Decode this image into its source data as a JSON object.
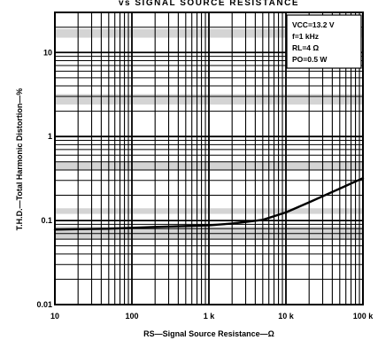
{
  "chart_data": {
    "type": "line",
    "title": "vs SIGNAL SOURCE RESISTANCE",
    "xlabel": "RS—Signal Source Resistance—Ω",
    "ylabel": "T.H.D.—Total Harmonic Distortion—%",
    "x_scale": "log",
    "y_scale": "log",
    "xlim": [
      10,
      100000
    ],
    "ylim": [
      0.01,
      30
    ],
    "x_ticks": [
      {
        "value": 10,
        "label": "10"
      },
      {
        "value": 100,
        "label": "100"
      },
      {
        "value": 1000,
        "label": "1 k"
      },
      {
        "value": 10000,
        "label": "10 k"
      },
      {
        "value": 100000,
        "label": "100 k"
      }
    ],
    "y_ticks": [
      {
        "value": 0.01,
        "label": "0.01"
      },
      {
        "value": 0.1,
        "label": "0.1"
      },
      {
        "value": 1,
        "label": "1"
      },
      {
        "value": 10,
        "label": "10"
      }
    ],
    "grid": true,
    "legend_position": "top-right",
    "conditions": [
      "VCC=13.2 V",
      "f=1 kHz",
      "RL=4 Ω",
      "PO=0.5 W"
    ],
    "series": [
      {
        "x": [
          10,
          20,
          50,
          100,
          200,
          500,
          1000,
          2000,
          5000,
          10000,
          20000,
          50000,
          100000
        ],
        "y": [
          0.078,
          0.079,
          0.08,
          0.082,
          0.084,
          0.086,
          0.088,
          0.092,
          0.102,
          0.125,
          0.165,
          0.24,
          0.32
        ]
      }
    ]
  }
}
